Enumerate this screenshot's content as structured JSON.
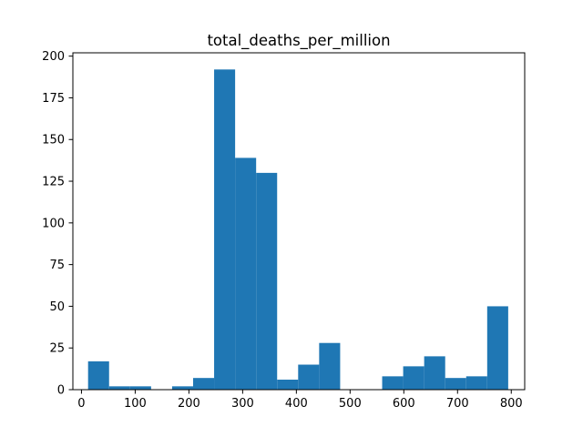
{
  "chart_data": {
    "type": "histogram",
    "title": "total_deaths_per_million",
    "xlabel": "",
    "ylabel": "",
    "xlim": [
      -16,
      825
    ],
    "ylim": [
      0,
      202
    ],
    "x_ticks": [
      0,
      100,
      200,
      300,
      400,
      500,
      600,
      700,
      800
    ],
    "y_ticks": [
      0,
      25,
      50,
      75,
      100,
      125,
      150,
      175,
      200
    ],
    "bar_color": "#1f77b4",
    "bins": [
      {
        "x0": 12.3,
        "x1": 51.4,
        "count": 17
      },
      {
        "x0": 51.4,
        "x1": 90.5,
        "count": 2
      },
      {
        "x0": 90.5,
        "x1": 129.6,
        "count": 2
      },
      {
        "x0": 129.6,
        "x1": 168.7,
        "count": 0
      },
      {
        "x0": 168.7,
        "x1": 207.8,
        "count": 2
      },
      {
        "x0": 207.8,
        "x1": 246.9,
        "count": 7
      },
      {
        "x0": 246.9,
        "x1": 286.0,
        "count": 192
      },
      {
        "x0": 286.0,
        "x1": 325.1,
        "count": 139
      },
      {
        "x0": 325.1,
        "x1": 364.2,
        "count": 130
      },
      {
        "x0": 364.2,
        "x1": 403.3,
        "count": 6
      },
      {
        "x0": 403.3,
        "x1": 442.4,
        "count": 15
      },
      {
        "x0": 442.4,
        "x1": 481.5,
        "count": 28
      },
      {
        "x0": 481.5,
        "x1": 520.6,
        "count": 0
      },
      {
        "x0": 520.6,
        "x1": 559.7,
        "count": 0
      },
      {
        "x0": 559.7,
        "x1": 598.8,
        "count": 8
      },
      {
        "x0": 598.8,
        "x1": 637.9,
        "count": 14
      },
      {
        "x0": 637.9,
        "x1": 677.0,
        "count": 20
      },
      {
        "x0": 677.0,
        "x1": 716.1,
        "count": 7
      },
      {
        "x0": 716.1,
        "x1": 755.2,
        "count": 8
      },
      {
        "x0": 755.2,
        "x1": 794.3,
        "count": 50
      }
    ],
    "grid": false,
    "legend": "none"
  }
}
